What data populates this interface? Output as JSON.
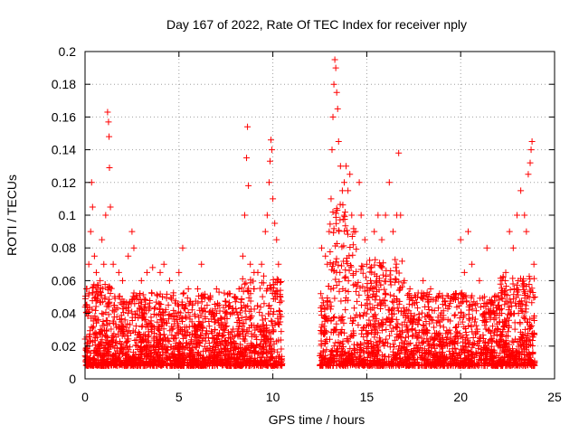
{
  "chart_data": {
    "type": "scatter",
    "title": "Day 167 of 2022, Rate Of TEC Index for receiver nply",
    "xlabel": "GPS time / hours",
    "ylabel": "ROTI / TECUs",
    "xlim": [
      0,
      25
    ],
    "ylim": [
      0,
      0.2
    ],
    "x_ticks": [
      "0",
      "5",
      "10",
      "15",
      "20",
      "25"
    ],
    "y_ticks": [
      "0",
      "0.02",
      "0.04",
      "0.06",
      "0.08",
      "0.1",
      "0.12",
      "0.14",
      "0.16",
      "0.18",
      "0.2"
    ],
    "grid": true,
    "marker": "plus",
    "color": "#ff0000",
    "data_gap_hours": [
      10.5,
      12.5
    ],
    "series": [
      {
        "values_note": "dense cloud, baseline ~0.01-0.03",
        "points": [
          [
            0.05,
            0.045
          ],
          [
            0.1,
            0.055
          ],
          [
            0.2,
            0.07
          ],
          [
            0.3,
            0.09
          ],
          [
            0.35,
            0.12
          ],
          [
            0.4,
            0.105
          ],
          [
            0.5,
            0.075
          ],
          [
            0.6,
            0.065
          ],
          [
            0.8,
            0.06
          ],
          [
            0.9,
            0.085
          ],
          [
            1.0,
            0.07
          ],
          [
            1.1,
            0.1
          ],
          [
            1.2,
            0.163
          ],
          [
            1.25,
            0.157
          ],
          [
            1.28,
            0.148
          ],
          [
            1.3,
            0.129
          ],
          [
            1.35,
            0.105
          ],
          [
            1.5,
            0.07
          ],
          [
            1.8,
            0.065
          ],
          [
            2.0,
            0.06
          ],
          [
            2.3,
            0.075
          ],
          [
            2.5,
            0.09
          ],
          [
            2.6,
            0.08
          ],
          [
            3.0,
            0.06
          ],
          [
            3.3,
            0.065
          ],
          [
            3.6,
            0.068
          ],
          [
            4.0,
            0.065
          ],
          [
            4.2,
            0.07
          ],
          [
            4.5,
            0.06
          ],
          [
            5.0,
            0.065
          ],
          [
            5.2,
            0.08
          ],
          [
            5.5,
            0.055
          ],
          [
            6.0,
            0.055
          ],
          [
            6.2,
            0.07
          ],
          [
            6.5,
            0.045
          ],
          [
            7.0,
            0.055
          ],
          [
            7.5,
            0.045
          ],
          [
            8.0,
            0.05
          ],
          [
            8.2,
            0.055
          ],
          [
            8.4,
            0.075
          ],
          [
            8.5,
            0.1
          ],
          [
            8.6,
            0.135
          ],
          [
            8.65,
            0.154
          ],
          [
            8.7,
            0.118
          ],
          [
            8.8,
            0.07
          ],
          [
            9.0,
            0.065
          ],
          [
            9.2,
            0.065
          ],
          [
            9.4,
            0.07
          ],
          [
            9.6,
            0.09
          ],
          [
            9.7,
            0.1
          ],
          [
            9.8,
            0.12
          ],
          [
            9.85,
            0.133
          ],
          [
            9.9,
            0.146
          ],
          [
            9.95,
            0.14
          ],
          [
            10.0,
            0.11
          ],
          [
            10.1,
            0.095
          ],
          [
            10.2,
            0.085
          ],
          [
            10.3,
            0.07
          ],
          [
            10.4,
            0.05
          ],
          [
            12.6,
            0.08
          ],
          [
            12.8,
            0.075
          ],
          [
            12.9,
            0.07
          ],
          [
            13.0,
            0.09
          ],
          [
            13.1,
            0.11
          ],
          [
            13.15,
            0.14
          ],
          [
            13.2,
            0.16
          ],
          [
            13.25,
            0.18
          ],
          [
            13.3,
            0.195
          ],
          [
            13.35,
            0.19
          ],
          [
            13.4,
            0.175
          ],
          [
            13.45,
            0.165
          ],
          [
            13.5,
            0.145
          ],
          [
            13.6,
            0.13
          ],
          [
            13.7,
            0.115
          ],
          [
            13.8,
            0.12
          ],
          [
            13.9,
            0.13
          ],
          [
            14.0,
            0.115
          ],
          [
            14.1,
            0.125
          ],
          [
            14.2,
            0.1
          ],
          [
            14.4,
            0.09
          ],
          [
            14.6,
            0.12
          ],
          [
            14.7,
            0.1
          ],
          [
            14.9,
            0.085
          ],
          [
            15.0,
            0.07
          ],
          [
            15.2,
            0.06
          ],
          [
            15.4,
            0.09
          ],
          [
            15.6,
            0.1
          ],
          [
            15.8,
            0.085
          ],
          [
            16.0,
            0.1
          ],
          [
            16.2,
            0.12
          ],
          [
            16.4,
            0.09
          ],
          [
            16.6,
            0.1
          ],
          [
            16.7,
            0.138
          ],
          [
            16.8,
            0.1
          ],
          [
            17.0,
            0.06
          ],
          [
            17.3,
            0.055
          ],
          [
            17.6,
            0.05
          ],
          [
            18.0,
            0.06
          ],
          [
            18.4,
            0.055
          ],
          [
            18.8,
            0.05
          ],
          [
            19.2,
            0.045
          ],
          [
            19.6,
            0.05
          ],
          [
            20.0,
            0.085
          ],
          [
            20.2,
            0.065
          ],
          [
            20.4,
            0.09
          ],
          [
            20.6,
            0.07
          ],
          [
            21.0,
            0.06
          ],
          [
            21.4,
            0.08
          ],
          [
            21.8,
            0.05
          ],
          [
            22.0,
            0.045
          ],
          [
            22.2,
            0.06
          ],
          [
            22.4,
            0.065
          ],
          [
            22.6,
            0.09
          ],
          [
            22.8,
            0.08
          ],
          [
            23.0,
            0.1
          ],
          [
            23.2,
            0.115
          ],
          [
            23.4,
            0.1
          ],
          [
            23.5,
            0.09
          ],
          [
            23.6,
            0.125
          ],
          [
            23.7,
            0.132
          ],
          [
            23.75,
            0.14
          ],
          [
            23.8,
            0.145
          ],
          [
            23.9,
            0.07
          ],
          [
            23.95,
            0.05
          ]
        ]
      }
    ]
  }
}
